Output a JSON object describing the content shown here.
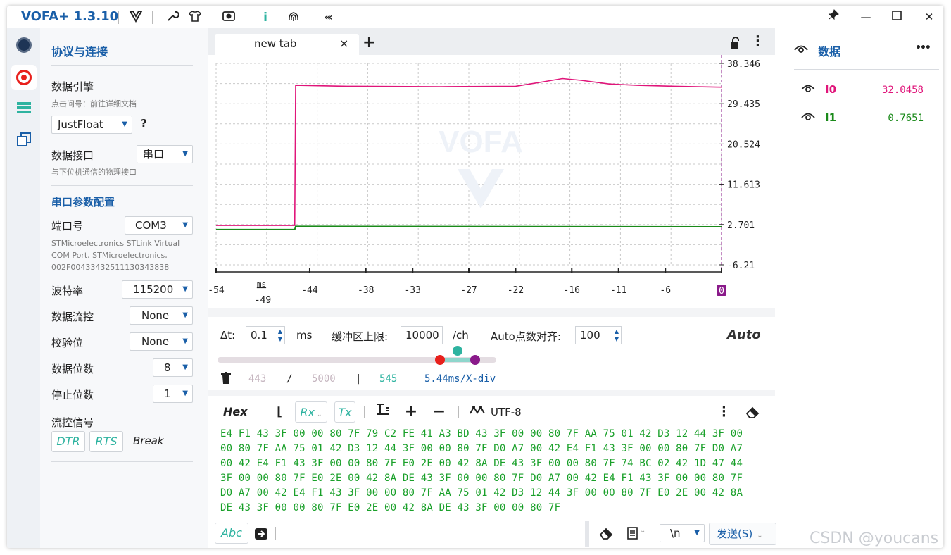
{
  "app": {
    "title": "VOFA+ 1.3.10"
  },
  "titlebar": {
    "icons": [
      "vofa-logo-icon",
      "wrench-icon",
      "shirt-icon",
      "camera-icon",
      "info-icon",
      "fingerprint-icon",
      "collapse-icon"
    ]
  },
  "colors": {
    "accent": "#1a5fa8",
    "series0": "#e0157a",
    "series1": "#1a8a1a",
    "teal": "#2eb3a0",
    "purple": "#8a1a8a",
    "red": "#e8201c"
  },
  "settings": {
    "title": "协议与连接",
    "engine_label": "数据引擎",
    "engine_hint": "点击问号：前往详细文档",
    "engine_value": "JustFloat",
    "help": "?",
    "interface_label": "数据接口",
    "interface_value": "串口",
    "interface_hint": "与下位机通信的物理接口",
    "serial_section": "串口参数配置",
    "port_label": "端口号",
    "port_value": "COM3",
    "port_desc_1": "STMicroelectronics STLink Virtual",
    "port_desc_2": "COM Port, STMicroelectronics,",
    "port_desc_3": "002F00433432511130343838",
    "baud_label": "波特率",
    "baud_value": "115200",
    "flow_label": "数据流控",
    "flow_value": "None",
    "parity_label": "校验位",
    "parity_value": "None",
    "databits_label": "数据位数",
    "databits_value": "8",
    "stopbits_label": "停止位数",
    "stopbits_value": "1",
    "flowsig_label": "流控信号",
    "dtr": "DTR",
    "rts": "RTS",
    "break": "Break"
  },
  "tab": {
    "label": "new tab",
    "close": "×",
    "add": "+"
  },
  "chart_data": {
    "type": "line",
    "title": "",
    "watermark": "VOFA",
    "x_ticks": [
      "-54",
      "-49",
      "-44",
      "-38",
      "-33",
      "-27",
      "-22",
      "-16",
      "-11",
      "-6",
      "0"
    ],
    "x_unit": "ms",
    "y_ticks": [
      "38.346",
      "29.435",
      "20.524",
      "11.613",
      "2.701",
      "-6.21"
    ],
    "ylim": [
      -6.21,
      38.346
    ],
    "xlim": [
      -54,
      0
    ],
    "grid": true,
    "series": [
      {
        "name": "I0",
        "color": "#e0157a",
        "x": [
          -54,
          -45.6,
          -45.5,
          -40,
          -30,
          -22,
          -19,
          -17,
          -15,
          -12,
          -9,
          -5,
          0
        ],
        "values": [
          2.5,
          2.5,
          33.5,
          33.3,
          33.2,
          33.3,
          34.3,
          35.0,
          34.6,
          33.8,
          33.5,
          33.3,
          33.1
        ]
      },
      {
        "name": "I1",
        "color": "#1a8a1a",
        "x": [
          -54,
          -45.6,
          -45.5,
          0
        ],
        "values": [
          1.6,
          1.6,
          2.3,
          2.2
        ]
      }
    ]
  },
  "controls": {
    "dt_label": "Δt:",
    "dt_value": "0.1",
    "dt_unit": "ms",
    "buffer_label": "缓冲区上限:",
    "buffer_value": "10000",
    "buffer_unit": "/ch",
    "align_label": "Auto点数对齐:",
    "align_value": "100",
    "auto": "Auto",
    "slider_fraction": 0.86,
    "count_a": "443",
    "slash": "/",
    "count_total": "5000",
    "pipe": "|",
    "count_c": "545",
    "xdiv": "5.44ms/X-div"
  },
  "receive": {
    "hex": "Hex",
    "rx": "Rx",
    "tx": "Tx",
    "encoding": "UTF-8",
    "lines": [
      "E4 F1 43 3F 00 00 80 7F 79 C2 FE 41 A3 BD 43 3F 00 00 80 7F AA 75 01 42 D3 12 44 3F 00",
      "00 80 7F AA 75 01 42 D3 12 44 3F 00 00 80 7F D0 A7 00 42 E4 F1 43 3F 00 00 80 7F D0 A7",
      "00 42 E4 F1 43 3F 00 00 80 7F E0 2E 00 42 8A DE 43 3F 00 00 80 7F 74 BC 02 42 1D 47 44",
      "3F 00 00 80 7F E0 2E 00 42 8A DE 43 3F 00 00 80 7F D0 A7 00 42 E4 F1 43 3F 00 00 80 7F",
      "D0 A7 00 42 E4 F1 43 3F 00 00 80 7F AA 75 01 42 D3 12 44 3F 00 00 80 7F E0 2E 00 42 8A",
      "DE 43 3F 00 00 80 7F E0 2E 00 42 8A DE 43 3F 00 00 80 7F"
    ]
  },
  "send": {
    "abc": "Abc",
    "newline": "\\n",
    "send_button": "发送(S)"
  },
  "data_panel": {
    "title": "数据",
    "more": "•••",
    "items": [
      {
        "name": "I0",
        "value": "32.0458"
      },
      {
        "name": "I1",
        "value": "0.7651"
      }
    ]
  },
  "watermark": "CSDN @youcans"
}
